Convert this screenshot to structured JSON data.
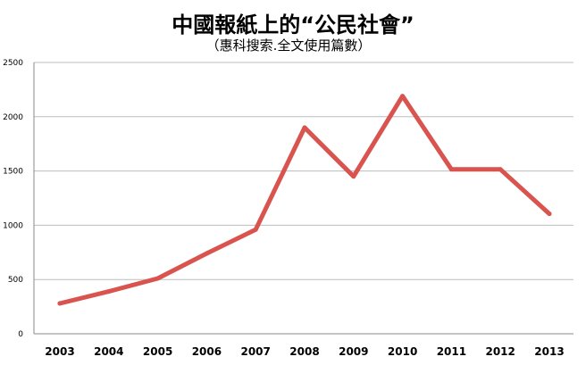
{
  "chart_data": {
    "type": "line",
    "title": "中國報紙上的“公民社會”",
    "subtitle": "（惠科搜索.全文使用篇數）",
    "xlabel": "",
    "ylabel": "",
    "categories": [
      "2003",
      "2004",
      "2005",
      "2006",
      "2007",
      "2008",
      "2009",
      "2010",
      "2011",
      "2012",
      "2013"
    ],
    "series": [
      {
        "values": [
          280,
          390,
          510,
          740,
          960,
          1900,
          1450,
          2190,
          1515,
          1515,
          1105
        ],
        "color": "#d9534f"
      }
    ],
    "ylim": [
      0,
      2500
    ],
    "yticks": [
      "0",
      "500",
      "1000",
      "1500",
      "2000",
      "2500"
    ],
    "grid": true,
    "legend": "none"
  }
}
